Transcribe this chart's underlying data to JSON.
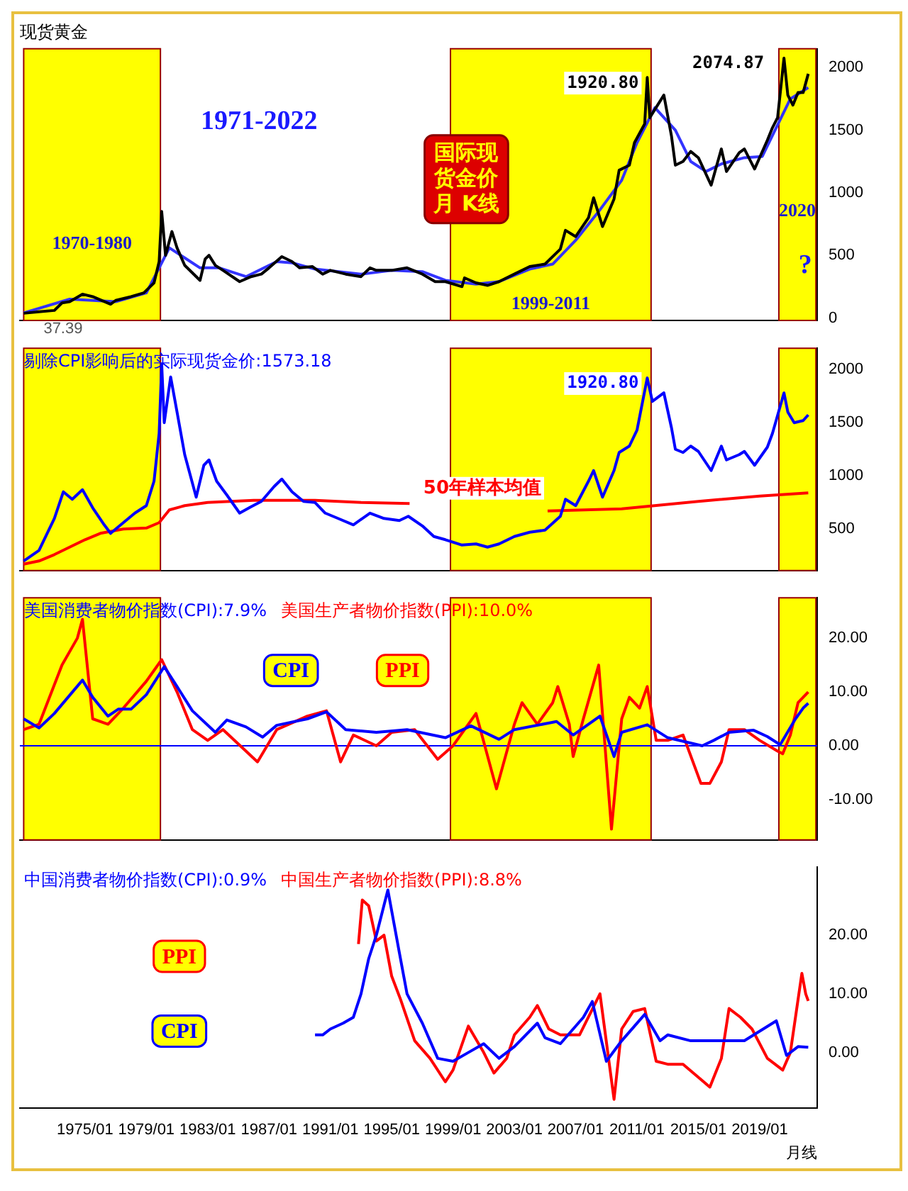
{
  "chart_data": [
    {
      "type": "line",
      "title": "现货黄金",
      "xlim": [
        "1970-10",
        "2022-10"
      ],
      "ylim": [
        -20,
        2150
      ],
      "yticks": [
        0,
        500,
        1000,
        1500,
        2000
      ],
      "tick_labels": "y",
      "series": [
        {
          "color": "#000000",
          "x": [
            "1971-01",
            "1972-01",
            "1973-01",
            "1973-07",
            "1974-01",
            "1974-11",
            "1975-07",
            "1976-09",
            "1977-01",
            "1978-01",
            "1978-11",
            "1979-07",
            "1979-11",
            "1980-01",
            "1980-04",
            "1980-09",
            "1981-01",
            "1981-07",
            "1982-07",
            "1982-11",
            "1983-02",
            "1983-07",
            "1984-01",
            "1985-02",
            "1985-11",
            "1986-07",
            "1987-01",
            "1987-11",
            "1988-07",
            "1989-01",
            "1989-11",
            "1990-07",
            "1991-01",
            "1992-01",
            "1993-01",
            "1993-08",
            "1994-01",
            "1995-01",
            "1996-01",
            "1997-01",
            "1997-11",
            "1998-07",
            "1999-08",
            "1999-10",
            "2000-07",
            "2001-04",
            "2002-01",
            "2003-01",
            "2004-01",
            "2005-01",
            "2006-01",
            "2006-05",
            "2007-01",
            "2007-11",
            "2008-03",
            "2008-10",
            "2009-07",
            "2009-11",
            "2010-07",
            "2010-11",
            "2011-07",
            "2011-09",
            "2011-11",
            "2012-10",
            "2013-04",
            "2013-07",
            "2014-01",
            "2014-07",
            "2015-01",
            "2015-11",
            "2016-07",
            "2016-11",
            "2017-09",
            "2018-01",
            "2018-09",
            "2019-07",
            "2019-11",
            "2020-03",
            "2020-08",
            "2020-11",
            "2021-03",
            "2021-07",
            "2021-11",
            "2022-03"
          ],
          "values": [
            37.39,
            50,
            60,
            120,
            130,
            190,
            170,
            110,
            140,
            170,
            200,
            280,
            450,
            850,
            500,
            690,
            560,
            420,
            300,
            470,
            500,
            420,
            380,
            290,
            330,
            350,
            400,
            490,
            450,
            400,
            410,
            350,
            380,
            350,
            330,
            400,
            380,
            380,
            400,
            350,
            290,
            290,
            250,
            320,
            280,
            260,
            290,
            350,
            410,
            430,
            550,
            700,
            650,
            800,
            960,
            730,
            950,
            1180,
            1220,
            1400,
            1550,
            1920.8,
            1600,
            1780,
            1450,
            1220,
            1250,
            1330,
            1280,
            1060,
            1350,
            1170,
            1320,
            1350,
            1190,
            1420,
            1520,
            1600,
            2074.87,
            1780,
            1700,
            1800,
            1800,
            1950
          ]
        },
        {
          "color": "#3333ff",
          "x": [
            "1971-01",
            "1974-01",
            "1977-01",
            "1979-01",
            "1980-07",
            "1981-07",
            "1982-07",
            "1983-10",
            "1985-07",
            "1987-07",
            "1988-07",
            "1990-01",
            "1993-01",
            "1995-01",
            "1997-01",
            "1998-07",
            "2000-07",
            "2002-01",
            "2004-01",
            "2005-07",
            "2007-01",
            "2008-07",
            "2010-01",
            "2011-01",
            "2012-03",
            "2013-07",
            "2014-07",
            "2015-07",
            "2016-07",
            "2018-01",
            "2019-03",
            "2020-01",
            "2021-01",
            "2022-03"
          ],
          "values": [
            40,
            150,
            130,
            200,
            560,
            480,
            400,
            400,
            330,
            450,
            440,
            390,
            350,
            380,
            370,
            300,
            270,
            290,
            390,
            430,
            620,
            850,
            1100,
            1400,
            1680,
            1500,
            1250,
            1170,
            1230,
            1280,
            1290,
            1500,
            1750,
            1840
          ]
        }
      ],
      "bands": [
        {
          "axis": "x",
          "from": "1971-01",
          "to": "1979-12",
          "label": "1970-1980",
          "color": "#ffff00"
        },
        {
          "axis": "x",
          "from": "1998-11",
          "to": "2011-12",
          "label": "1999-2011",
          "color": "#ffff00"
        },
        {
          "axis": "x",
          "from": "2020-04",
          "to": "2022-09",
          "label": "2020",
          "color": "#ffff00"
        }
      ],
      "annotations": [
        "1971-2022",
        "国际现货金价月 K线",
        "?",
        {
          "text": "1920.80",
          "x": "2011-09",
          "y": 1920.8
        },
        {
          "text": "2074.87",
          "x": "2020-08",
          "y": 2074.87
        },
        {
          "text": "37.39",
          "x": "1971-01",
          "y": 37.39
        }
      ]
    },
    {
      "type": "line",
      "xlim": [
        "1970-10",
        "2022-10"
      ],
      "ylim": [
        110,
        2200
      ],
      "yticks": [
        500,
        1000,
        1500,
        2000
      ],
      "tick_labels": "y",
      "series": [
        {
          "name": "剔除CPI影响后的实际现货金价:1573.18",
          "color": "#0000ff",
          "x": [
            "1971-01",
            "1972-01",
            "1973-01",
            "1973-08",
            "1974-03",
            "1974-11",
            "1975-07",
            "1976-04",
            "1976-09",
            "1977-07",
            "1978-04",
            "1979-01",
            "1979-07",
            "1979-11",
            "1980-01",
            "1980-03",
            "1980-08",
            "1981-01",
            "1981-07",
            "1982-04",
            "1982-10",
            "1983-02",
            "1983-08",
            "1984-04",
            "1985-02",
            "1985-11",
            "1986-07",
            "1987-05",
            "1987-11",
            "1988-07",
            "1989-04",
            "1990-01",
            "1990-09",
            "1991-07",
            "1992-07",
            "1993-08",
            "1994-07",
            "1995-07",
            "1996-02",
            "1997-01",
            "1997-10",
            "1998-07",
            "1999-08",
            "2000-07",
            "2001-04",
            "2002-01",
            "2003-01",
            "2004-01",
            "2005-01",
            "2006-01",
            "2006-05",
            "2007-01",
            "2007-11",
            "2008-03",
            "2008-10",
            "2009-07",
            "2009-11",
            "2010-07",
            "2011-01",
            "2011-09",
            "2012-01",
            "2012-10",
            "2013-04",
            "2013-07",
            "2014-01",
            "2014-07",
            "2015-01",
            "2015-11",
            "2016-07",
            "2016-11",
            "2017-09",
            "2018-01",
            "2018-09",
            "2019-07",
            "2019-11",
            "2020-08",
            "2020-11",
            "2021-04",
            "2021-11",
            "2022-03"
          ],
          "values": [
            200,
            300,
            600,
            850,
            780,
            870,
            700,
            540,
            460,
            560,
            650,
            720,
            950,
            1400,
            2050,
            1500,
            1930,
            1600,
            1200,
            800,
            1100,
            1150,
            950,
            820,
            650,
            710,
            760,
            900,
            970,
            850,
            760,
            750,
            650,
            600,
            540,
            650,
            600,
            580,
            620,
            530,
            430,
            400,
            350,
            360,
            330,
            360,
            430,
            470,
            490,
            620,
            780,
            720,
            950,
            1050,
            800,
            1050,
            1220,
            1280,
            1430,
            1920.8,
            1700,
            1780,
            1450,
            1250,
            1220,
            1280,
            1230,
            1050,
            1280,
            1150,
            1200,
            1230,
            1100,
            1270,
            1400,
            1780,
            1600,
            1500,
            1520,
            1573.18
          ]
        },
        {
          "color": "#ff0000",
          "x": [
            "1971-01",
            "1972-01",
            "1973-01",
            "1974-01",
            "1975-01",
            "1976-01",
            "1977-07",
            "1979-01",
            "1979-11",
            "1980-07",
            "1981-07",
            "1983-01",
            "1986-01",
            "1990-01",
            "1993-01",
            "1996-03",
            "2000-01",
            "2005-03",
            "2010-01",
            "2015-01",
            "2019-01",
            "2022-03"
          ],
          "values": [
            170,
            200,
            260,
            330,
            400,
            460,
            500,
            510,
            560,
            680,
            720,
            750,
            770,
            770,
            750,
            740,
            null,
            670,
            690,
            760,
            810,
            840
          ]
        }
      ],
      "bands": [
        {
          "axis": "x",
          "from": "1971-01",
          "to": "1979-12",
          "color": "#ffff00"
        },
        {
          "axis": "x",
          "from": "1998-11",
          "to": "2011-12",
          "color": "#ffff00"
        },
        {
          "axis": "x",
          "from": "2020-04",
          "to": "2022-09",
          "color": "#ffff00"
        }
      ],
      "annotations": [
        "50年样本均值",
        {
          "text": "1920.80",
          "x": "2011-09",
          "y": 1920.8
        }
      ]
    },
    {
      "type": "line",
      "xlim": [
        "1970-10",
        "2022-10"
      ],
      "ylim": [
        -17.5,
        27.5
      ],
      "yticks": [
        {
          "value": -10,
          "label": "-10.00"
        },
        {
          "value": 0,
          "label": "0.00"
        },
        {
          "value": 10,
          "label": "10.00"
        },
        {
          "value": 20,
          "label": "20.00"
        }
      ],
      "tick_labels": "y",
      "series": [
        {
          "name": "美国消费者物价指数(CPI):7.9%",
          "color": "#0000ff",
          "x": [
            "1971-01",
            "1972-01",
            "1973-01",
            "1974-11",
            "1975-07",
            "1976-07",
            "1977-03",
            "1978-01",
            "1979-01",
            "1980-03",
            "1981-01",
            "1982-01",
            "1983-07",
            "1984-04",
            "1985-07",
            "1986-08",
            "1987-07",
            "1989-07",
            "1990-10",
            "1992-01",
            "1994-01",
            "1996-01",
            "1998-07",
            "2000-03",
            "2002-01",
            "2003-01",
            "2005-10",
            "2006-11",
            "2008-08",
            "2009-07",
            "2010-01",
            "2011-09",
            "2013-01",
            "2015-04",
            "2016-01",
            "2017-01",
            "2018-08",
            "2019-07",
            "2020-05",
            "2021-05",
            "2021-11",
            "2022-03"
          ],
          "values": [
            5,
            3.3,
            6,
            12.2,
            9,
            5.5,
            6.8,
            6.8,
            9.5,
            14.7,
            11,
            6.5,
            2.5,
            4.8,
            3.5,
            1.6,
            3.8,
            5,
            6.3,
            3,
            2.5,
            3,
            1.5,
            3.7,
            1.2,
            3,
            4.5,
            2,
            5.5,
            -2,
            2.5,
            3.9,
            1.5,
            0,
            1,
            2.5,
            2.9,
            1.7,
            0.2,
            5,
            7,
            7.9
          ]
        },
        {
          "name": "美国生产者物价指数(PPI):10.0%",
          "color": "#ff0000",
          "x": [
            "1971-01",
            "1972-01",
            "1973-07",
            "1974-07",
            "1974-11",
            "1975-07",
            "1976-07",
            "1977-07",
            "1979-01",
            "1980-01",
            "1981-01",
            "1982-01",
            "1983-01",
            "1984-01",
            "1986-04",
            "1987-07",
            "1989-07",
            "1990-10",
            "1991-09",
            "1992-07",
            "1994-01",
            "1995-01",
            "1996-07",
            "1998-01",
            "1999-01",
            "2000-07",
            "2001-11",
            "2003-01",
            "2003-07",
            "2004-07",
            "2005-07",
            "2005-11",
            "2006-08",
            "2006-11",
            "2007-07",
            "2008-07",
            "2009-05",
            "2010-01",
            "2010-07",
            "2011-03",
            "2011-09",
            "2012-04",
            "2013-01",
            "2014-01",
            "2015-03",
            "2015-10",
            "2016-07",
            "2017-01",
            "2018-01",
            "2019-01",
            "2020-03",
            "2020-07",
            "2021-01",
            "2021-07",
            "2022-03"
          ],
          "values": [
            3,
            4,
            15,
            20,
            23.5,
            5,
            4,
            7,
            12,
            16,
            10,
            3,
            1,
            3,
            -3,
            3,
            5.5,
            6.5,
            -3,
            2,
            0,
            2.5,
            3,
            -2.5,
            0,
            6,
            -8,
            4,
            8,
            4,
            8,
            11,
            4,
            -2,
            5,
            15,
            -15.5,
            5,
            9,
            7,
            11,
            1,
            1,
            2,
            -7,
            -7,
            -3,
            3,
            3,
            1,
            -1,
            -1.5,
            2,
            8,
            10
          ]
        }
      ],
      "ref_lines": [
        {
          "axis": "y",
          "value": 0,
          "color": "#0000ff"
        }
      ],
      "bands": [
        {
          "axis": "x",
          "from": "1971-01",
          "to": "1979-12",
          "color": "#ffff00"
        },
        {
          "axis": "x",
          "from": "1998-11",
          "to": "2011-12",
          "color": "#ffff00"
        },
        {
          "axis": "x",
          "from": "2020-04",
          "to": "2022-09",
          "color": "#ffff00"
        }
      ],
      "annotations": [
        "CPI",
        "PPI"
      ]
    },
    {
      "type": "line",
      "xlabel": "月线",
      "xlim": [
        "1970-10",
        "2022-10"
      ],
      "xticks": [
        {
          "value": "1975-01",
          "label": "1975/01"
        },
        {
          "value": "1979-01",
          "label": "1979/01"
        },
        {
          "value": "1983-01",
          "label": "1983/01"
        },
        {
          "value": "1987-01",
          "label": "1987/01"
        },
        {
          "value": "1991-01",
          "label": "1991/01"
        },
        {
          "value": "1995-01",
          "label": "1995/01"
        },
        {
          "value": "1999-01",
          "label": "1999/01"
        },
        {
          "value": "2003-01",
          "label": "2003/01"
        },
        {
          "value": "2007-01",
          "label": "2007/01"
        },
        {
          "value": "2011-01",
          "label": "2011/01"
        },
        {
          "value": "2015-01",
          "label": "2015/01"
        },
        {
          "value": "2019-01",
          "label": "2019/01"
        }
      ],
      "ylim": [
        -9.5,
        31.6
      ],
      "yticks": [
        {
          "value": 0,
          "label": "0.00"
        },
        {
          "value": 10,
          "label": "10.00"
        },
        {
          "value": 20,
          "label": "20.00"
        }
      ],
      "series": [
        {
          "name": "中国消费者物价指数(CPI):0.9%",
          "color": "#0000ff",
          "x": [
            "1990-01",
            "1990-07",
            "1991-01",
            "1991-11",
            "1992-07",
            "1993-01",
            "1993-07",
            "1994-01",
            "1994-10",
            "1995-07",
            "1996-01",
            "1997-01",
            "1998-01",
            "1999-01",
            "2000-01",
            "2001-01",
            "2002-01",
            "2003-01",
            "2004-07",
            "2005-01",
            "2006-01",
            "2007-07",
            "2008-02",
            "2009-01",
            "2010-01",
            "2011-07",
            "2012-07",
            "2013-01",
            "2014-07",
            "2016-01",
            "2018-01",
            "2020-02",
            "2020-10",
            "2021-07",
            "2022-03"
          ],
          "values": [
            3,
            3,
            4,
            5,
            6,
            10,
            16,
            20,
            27.7,
            17,
            10,
            5,
            -1,
            -1.5,
            0,
            1.5,
            -1,
            1,
            5,
            2.5,
            1.5,
            6,
            8.7,
            -1.5,
            2,
            6.5,
            2,
            3,
            2,
            2,
            2,
            5.4,
            -0.5,
            1,
            0.9
          ]
        },
        {
          "name": "中国生产者物价指数(PPI):8.8%",
          "color": "#ff0000",
          "x": [
            "1992-11",
            "1993-02",
            "1993-07",
            "1994-01",
            "1994-07",
            "1995-01",
            "1995-08",
            "1996-07",
            "1997-07",
            "1998-07",
            "1999-01",
            "2000-01",
            "2001-01",
            "2001-09",
            "2002-07",
            "2003-01",
            "2004-01",
            "2004-07",
            "2005-04",
            "2006-01",
            "2007-04",
            "2008-08",
            "2009-07",
            "2010-01",
            "2010-10",
            "2011-07",
            "2012-04",
            "2013-01",
            "2014-01",
            "2015-10",
            "2016-07",
            "2017-01",
            "2017-10",
            "2018-07",
            "2019-07",
            "2020-07",
            "2021-01",
            "2021-07",
            "2021-10",
            "2022-01",
            "2022-03"
          ],
          "values": [
            18.5,
            26,
            25,
            19,
            20,
            13,
            9,
            2,
            -1,
            -5,
            -3,
            4.5,
            0,
            -3.5,
            -1,
            3,
            6,
            8,
            4,
            3,
            3,
            10,
            -8,
            4,
            7,
            7.5,
            -1.5,
            -2,
            -2,
            -5.9,
            -1,
            7.5,
            6,
            4,
            -1,
            -3,
            0,
            9,
            13.5,
            10,
            8.8
          ]
        }
      ],
      "annotations": [
        "CPI",
        "PPI"
      ]
    }
  ]
}
